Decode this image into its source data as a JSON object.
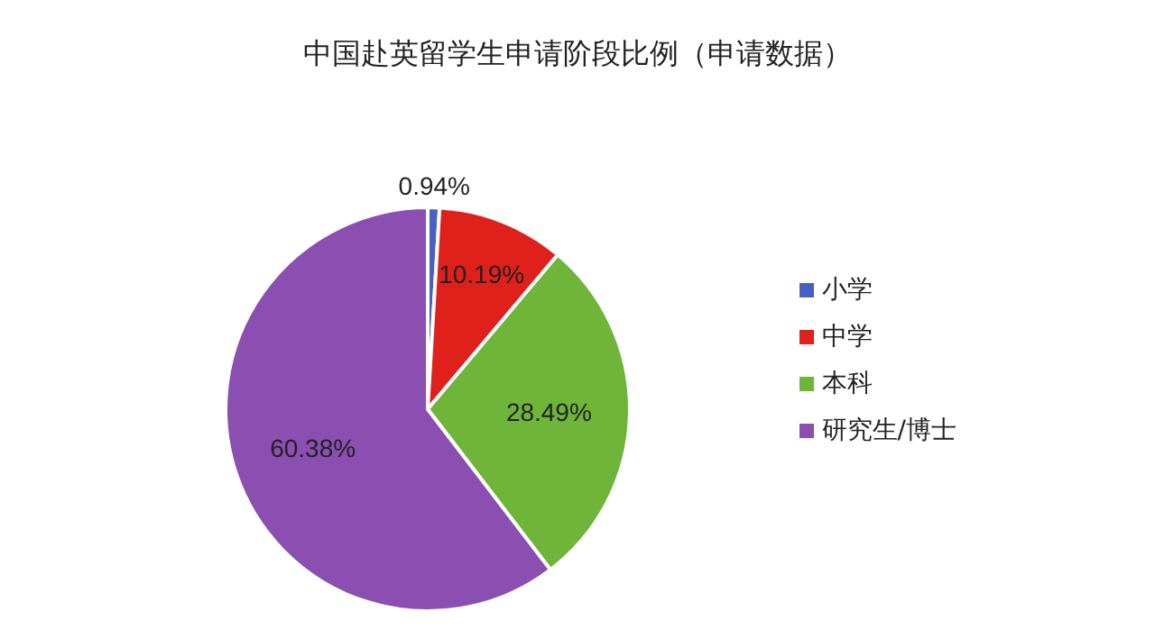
{
  "chart_data": {
    "type": "pie",
    "title": "中国赴英留学生申请阶段比例（申请数据）",
    "categories": [
      "小学",
      "中学",
      "本科",
      "研究生/博士"
    ],
    "values": [
      0.94,
      10.19,
      28.49,
      60.38
    ],
    "colors": [
      "#4a5fc1",
      "#e0201b",
      "#6fb53a",
      "#8a4fb0"
    ],
    "value_labels": [
      "0.94%",
      "10.19%",
      "28.49%",
      "60.38%"
    ],
    "legend": "right"
  }
}
